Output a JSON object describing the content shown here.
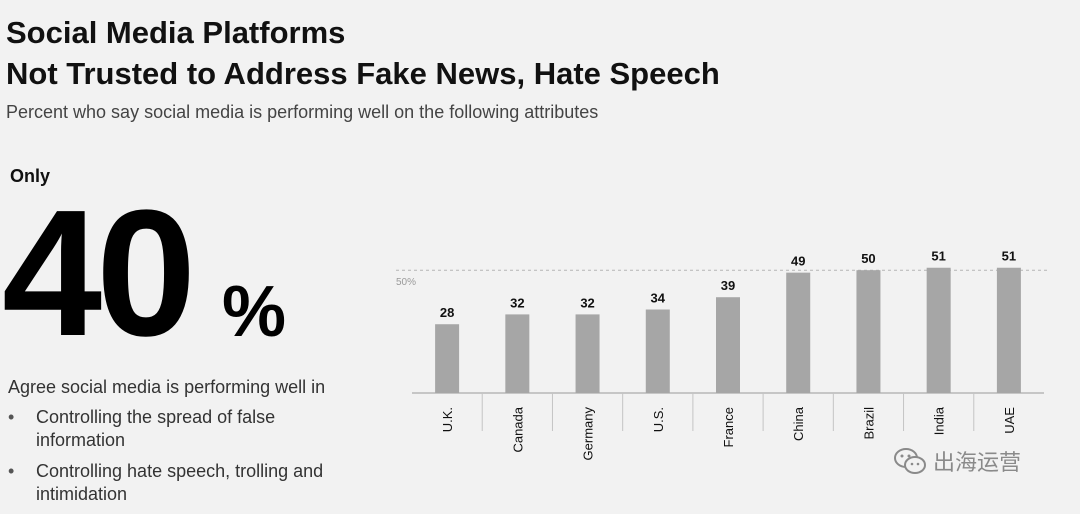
{
  "header": {
    "title_line1": "Social Media Platforms",
    "title_line2": "Not Trusted to Address Fake News, Hate Speech",
    "subtitle": "Percent who say social media is performing well on the following attributes"
  },
  "callout": {
    "prefix": "Only",
    "value": "40",
    "unit": "%",
    "description": "Agree social media is performing well in",
    "bullets": [
      "Controlling the spread of false information",
      "Controlling hate speech, trolling and intimidation"
    ]
  },
  "chart_data": {
    "type": "bar",
    "categories": [
      "U.K.",
      "Canada",
      "Germany",
      "U.S.",
      "France",
      "China",
      "Brazil",
      "India",
      "UAE"
    ],
    "values": [
      28,
      32,
      32,
      34,
      39,
      49,
      50,
      51,
      51
    ],
    "reference_line": {
      "value": 50,
      "label": "50%"
    },
    "ylim": [
      0,
      57
    ],
    "grid": false,
    "bar_color": "#a6a6a6",
    "data_labels": true
  },
  "watermark": {
    "text": "出海运营",
    "icon": "wechat-icon"
  }
}
